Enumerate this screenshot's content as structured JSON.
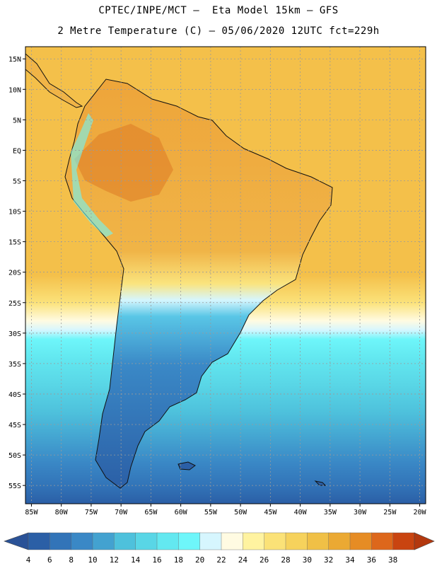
{
  "header": {
    "line1": "CPTEC/INPE/MCT –  Eta Model 15km – GFS",
    "line2": "2 Metre Temperature (C) – 05/06/2020 12UTC fct=229h"
  },
  "map": {
    "lon_range": [
      -86,
      -19
    ],
    "lat_range": [
      -58,
      17
    ],
    "lon_ticks": [
      {
        "v": -85,
        "label": "85W"
      },
      {
        "v": -80,
        "label": "80W"
      },
      {
        "v": -75,
        "label": "75W"
      },
      {
        "v": -70,
        "label": "70W"
      },
      {
        "v": -65,
        "label": "65W"
      },
      {
        "v": -60,
        "label": "60W"
      },
      {
        "v": -55,
        "label": "55W"
      },
      {
        "v": -50,
        "label": "50W"
      },
      {
        "v": -45,
        "label": "45W"
      },
      {
        "v": -40,
        "label": "40W"
      },
      {
        "v": -35,
        "label": "35W"
      },
      {
        "v": -30,
        "label": "30W"
      },
      {
        "v": -25,
        "label": "25W"
      },
      {
        "v": -20,
        "label": "20W"
      }
    ],
    "lat_ticks": [
      {
        "v": 15,
        "label": "15N"
      },
      {
        "v": 10,
        "label": "10N"
      },
      {
        "v": 5,
        "label": "5N"
      },
      {
        "v": 0,
        "label": "EQ"
      },
      {
        "v": -5,
        "label": "5S"
      },
      {
        "v": -10,
        "label": "10S"
      },
      {
        "v": -15,
        "label": "15S"
      },
      {
        "v": -20,
        "label": "20S"
      },
      {
        "v": -25,
        "label": "25S"
      },
      {
        "v": -30,
        "label": "30S"
      },
      {
        "v": -35,
        "label": "35S"
      },
      {
        "v": -40,
        "label": "40S"
      },
      {
        "v": -45,
        "label": "45S"
      },
      {
        "v": -50,
        "label": "50S"
      },
      {
        "v": -55,
        "label": "55S"
      }
    ],
    "gridlines": true
  },
  "colorbar": {
    "labels": [
      "4",
      "6",
      "8",
      "10",
      "12",
      "14",
      "16",
      "18",
      "20",
      "22",
      "24",
      "26",
      "28",
      "30",
      "32",
      "34",
      "36",
      "38"
    ],
    "colors": [
      "#2b5fa6",
      "#3274b8",
      "#3a88c6",
      "#43a2d0",
      "#4ec1dc",
      "#59d6e6",
      "#63e8f0",
      "#6ef6fa",
      "#d6f6fe",
      "#fffbe2",
      "#fff3a0",
      "#fbe277",
      "#f6d25c",
      "#f0c046",
      "#eba933",
      "#e68c24",
      "#dd671b",
      "#c94410"
    ],
    "low_color": "#2a5297",
    "high_color": "#b3380e"
  }
}
